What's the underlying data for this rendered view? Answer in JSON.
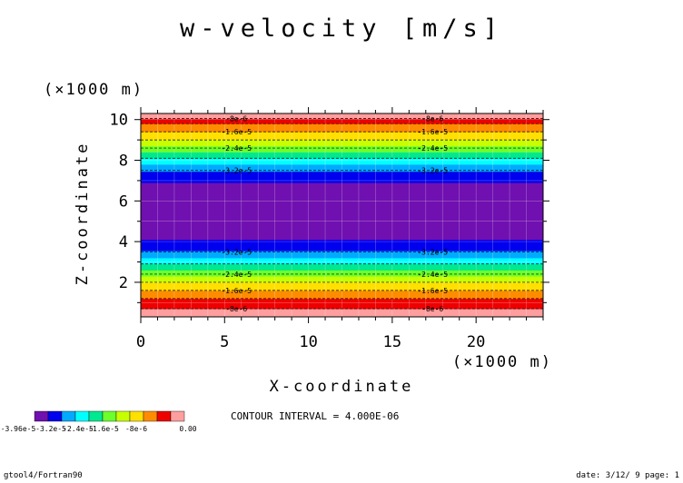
{
  "chart_data": {
    "type": "heatmap",
    "title": "w-velocity [m/s]",
    "xlabel": "X-coordinate",
    "ylabel": "Z-coordinate",
    "x_unit": "(×1000 m)",
    "y_unit": "(×1000 m)",
    "xlim": [
      0,
      24
    ],
    "ylim": [
      0.3,
      10.3
    ],
    "x_ticks": [
      0,
      5,
      10,
      15,
      20
    ],
    "y_ticks": [
      2,
      4,
      6,
      8,
      10
    ],
    "x_tick_labels": [
      "0",
      "5",
      "10",
      "15",
      "20"
    ],
    "y_tick_labels": [
      "2",
      "4",
      "6",
      "8",
      "10"
    ],
    "grid": true,
    "field_description": "w depends only on z; minimum near mid-height",
    "bands": [
      {
        "z0": 0.3,
        "z1": 0.7,
        "color": "#ff9e9e"
      },
      {
        "z0": 0.7,
        "z1": 1.2,
        "color": "#ee0000"
      },
      {
        "z0": 1.2,
        "z1": 1.6,
        "color": "#ff8c00"
      },
      {
        "z0": 1.6,
        "z1": 2.0,
        "color": "#ffe000"
      },
      {
        "z0": 2.0,
        "z1": 2.3,
        "color": "#c8ff00"
      },
      {
        "z0": 2.3,
        "z1": 2.6,
        "color": "#6cff2c"
      },
      {
        "z0": 2.6,
        "z1": 2.9,
        "color": "#00e890"
      },
      {
        "z0": 2.9,
        "z1": 3.2,
        "color": "#00ffff"
      },
      {
        "z0": 3.2,
        "z1": 3.55,
        "color": "#00aaff"
      },
      {
        "z0": 3.55,
        "z1": 4.1,
        "color": "#0000ee"
      },
      {
        "z0": 4.1,
        "z1": 6.9,
        "color": "#7010b0"
      },
      {
        "z0": 6.9,
        "z1": 7.45,
        "color": "#0000ee"
      },
      {
        "z0": 7.45,
        "z1": 7.8,
        "color": "#00aaff"
      },
      {
        "z0": 7.8,
        "z1": 8.1,
        "color": "#00ffff"
      },
      {
        "z0": 8.1,
        "z1": 8.4,
        "color": "#00e890"
      },
      {
        "z0": 8.4,
        "z1": 8.7,
        "color": "#6cff2c"
      },
      {
        "z0": 8.7,
        "z1": 9.0,
        "color": "#c8ff00"
      },
      {
        "z0": 9.0,
        "z1": 9.4,
        "color": "#ffe000"
      },
      {
        "z0": 9.4,
        "z1": 9.8,
        "color": "#ff8c00"
      },
      {
        "z0": 9.8,
        "z1": 10.05,
        "color": "#ee0000"
      },
      {
        "z0": 10.05,
        "z1": 10.3,
        "color": "#ff9e9e"
      }
    ],
    "contours": [
      {
        "z": 0.7,
        "label": "-8e-6"
      },
      {
        "z": 1.2,
        "label": ""
      },
      {
        "z": 1.6,
        "label": "-1.6e-5"
      },
      {
        "z": 2.0,
        "label": ""
      },
      {
        "z": 2.4,
        "label": "-2.4e-5"
      },
      {
        "z": 2.9,
        "label": ""
      },
      {
        "z": 3.5,
        "label": "-3.2e-5"
      },
      {
        "z": 7.5,
        "label": "-3.2e-5"
      },
      {
        "z": 8.1,
        "label": ""
      },
      {
        "z": 8.6,
        "label": "-2.4e-5"
      },
      {
        "z": 9.0,
        "label": ""
      },
      {
        "z": 9.4,
        "label": "-1.6e-5"
      },
      {
        "z": 9.8,
        "label": ""
      },
      {
        "z": 10.05,
        "label": "-8e-6"
      }
    ],
    "contour_label_x": [
      5.7,
      17.4
    ],
    "colorbar": {
      "colors": [
        "#7010b0",
        "#0000ee",
        "#00aaff",
        "#00ffff",
        "#00e890",
        "#6cff2c",
        "#c8ff00",
        "#ffe000",
        "#ff8c00",
        "#ee0000",
        "#ff9e9e"
      ],
      "labels": [
        "-3.96e-5",
        "-3.2e-5",
        "-2.4e-5",
        "-1.6e-5",
        "-8e-6",
        "0.00"
      ]
    }
  },
  "contour_interval": "CONTOUR INTERVAL = 4.000E-06",
  "footer": {
    "left": "gtool4/Fortran90",
    "right": "date: 3/12/ 9 page: 1"
  }
}
